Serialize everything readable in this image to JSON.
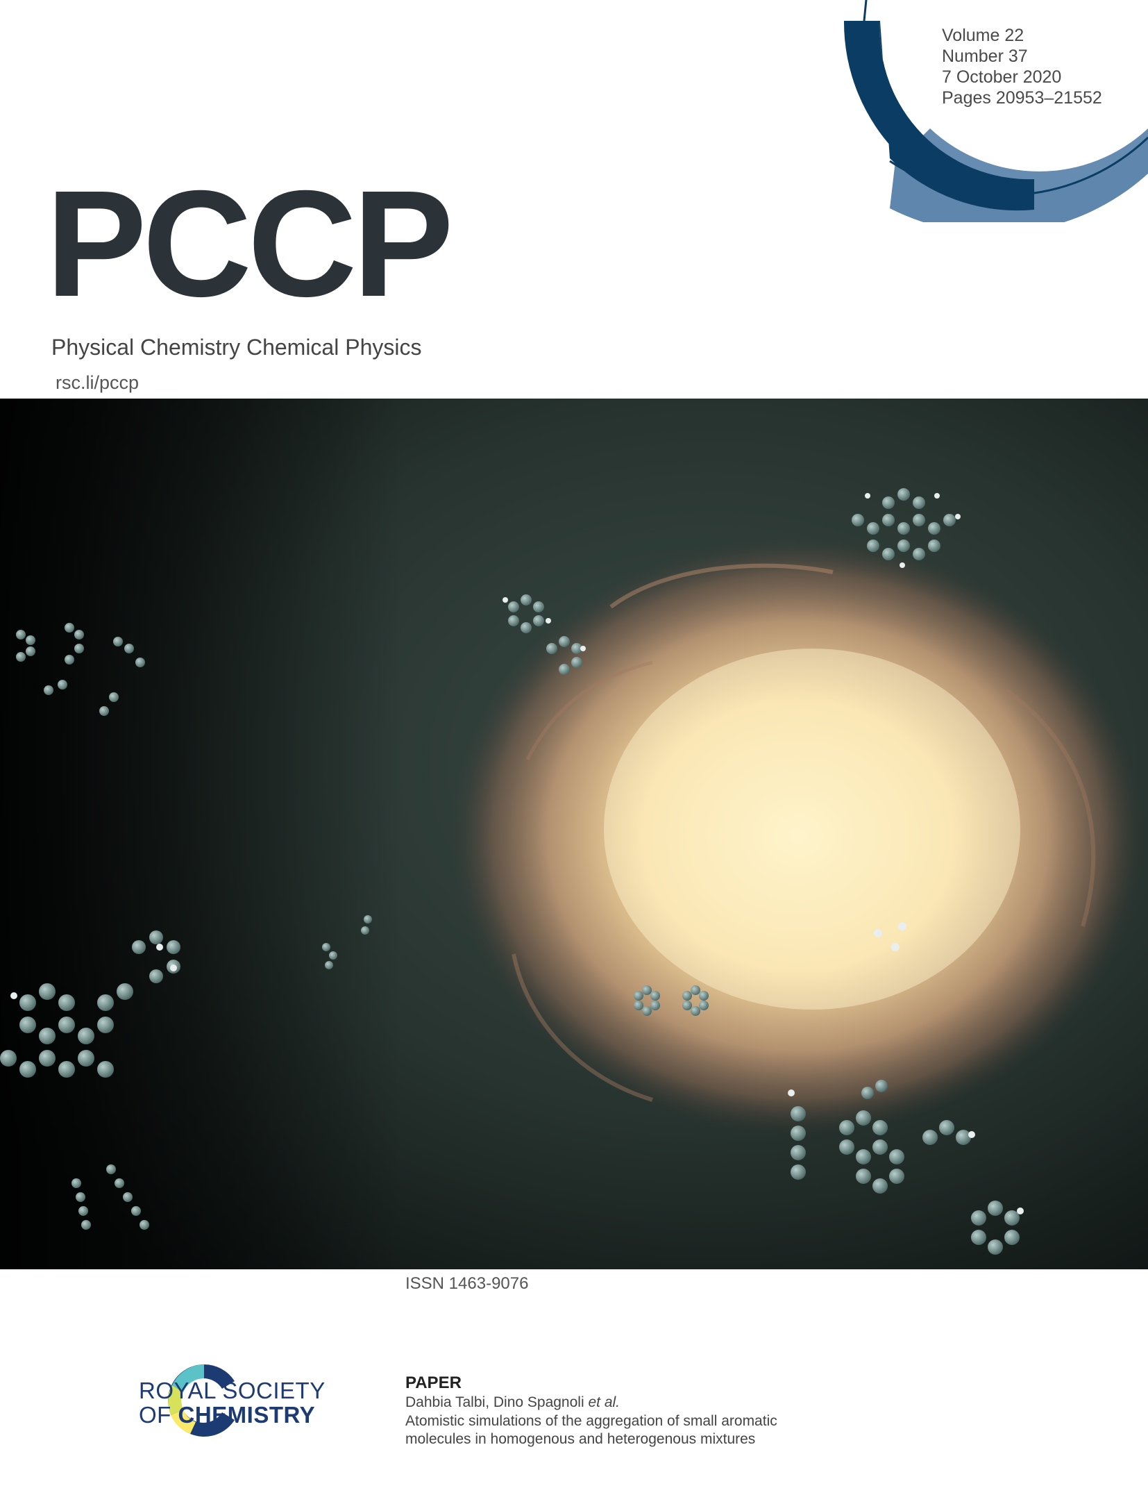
{
  "issue": {
    "volume": "Volume 22",
    "number": "Number 37",
    "date": "7 October 2020",
    "pages": "Pages 20953–21552"
  },
  "journal": {
    "logo": "PCCP",
    "full_name": "Physical Chemistry Chemical Physics",
    "url": "rsc.li/pccp"
  },
  "issn": "ISSN 1463-9076",
  "publisher": {
    "line1": "ROYAL SOCIETY",
    "line2_prefix": "OF ",
    "line2_bold": "CHEMISTRY"
  },
  "article": {
    "type": "PAPER",
    "authors_main": "Dahbia Talbi, Dino Spagnoli ",
    "authors_etal": "et al.",
    "title_line1": "Atomistic simulations of the aggregation of small aromatic",
    "title_line2": "molecules in homogenous and heterogenous mixtures"
  },
  "colors": {
    "dark_blue": "#0b3c63",
    "mid_blue": "#5f86ad",
    "logo_text": "#2b3238",
    "rsc_blue": "#1d3b73"
  },
  "icons": {
    "rings": "concentric-arc-rings",
    "rsc": "rsc-c-emblem"
  }
}
